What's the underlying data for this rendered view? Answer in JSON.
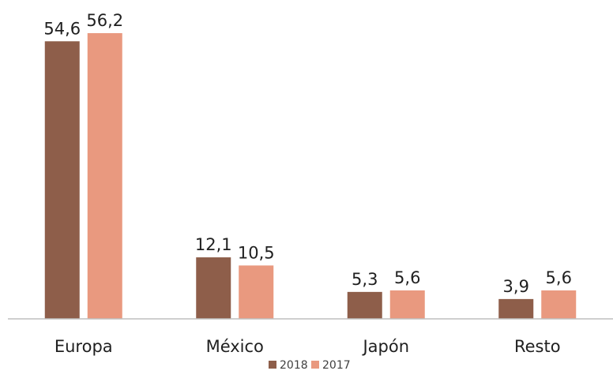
{
  "chart_data": {
    "type": "bar",
    "title": "",
    "xlabel": "",
    "ylabel": "",
    "categories": [
      "Europa",
      "México",
      "Japón",
      "Resto"
    ],
    "series": [
      {
        "name": "2018",
        "values": [
          54.6,
          12.1,
          5.3,
          3.9
        ],
        "labels": [
          "54,6",
          "12,1",
          "5,3",
          "3,9"
        ],
        "color": "#8e5e4a"
      },
      {
        "name": "2017",
        "values": [
          56.2,
          10.5,
          5.6,
          5.6
        ],
        "labels": [
          "56,2",
          "10,5",
          "5,6",
          "5,6"
        ],
        "color": "#e9997f"
      }
    ],
    "ylim": [
      0,
      56.2
    ],
    "grid": false,
    "legend_position": "bottom",
    "axis_color": "#bfbfbf"
  }
}
